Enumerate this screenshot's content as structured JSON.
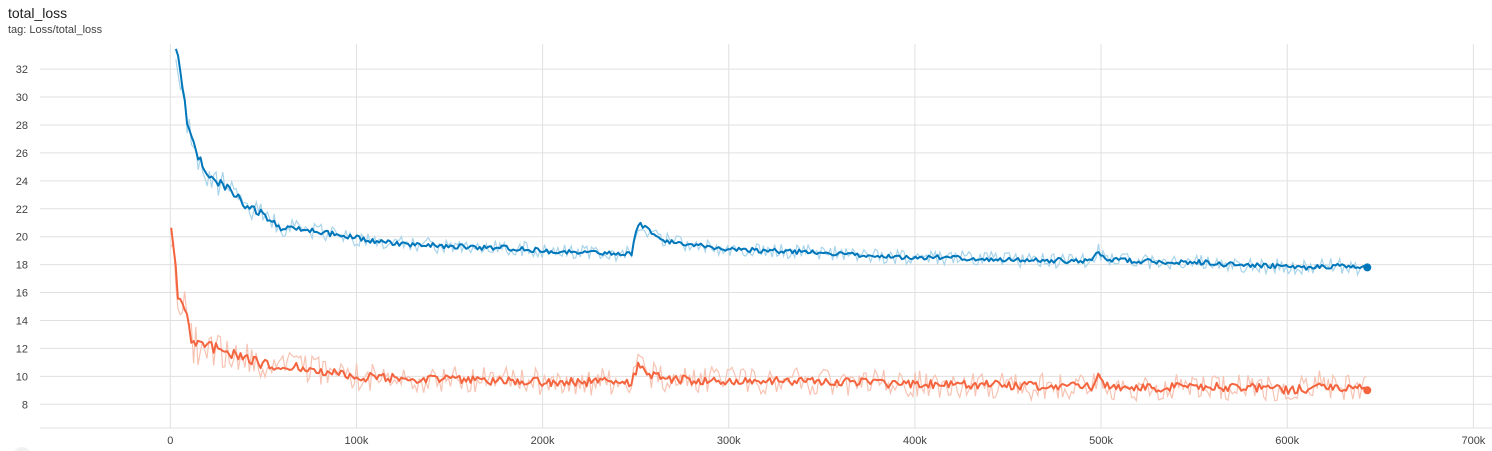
{
  "card": {
    "title": "total_loss",
    "tag": "tag: Loss/total_loss"
  },
  "chart_data": {
    "type": "line",
    "xlim": [
      -70000,
      710000
    ],
    "ylim": [
      6.3,
      33.8
    ],
    "xticks": [
      0,
      100000,
      200000,
      300000,
      400000,
      500000,
      600000,
      700000
    ],
    "xtick_labels": [
      "0",
      "100k",
      "200k",
      "300k",
      "400k",
      "500k",
      "600k",
      "700k"
    ],
    "yticks": [
      8,
      10,
      12,
      14,
      16,
      18,
      20,
      22,
      24,
      26,
      28,
      30,
      32
    ],
    "ytick_labels": [
      "8",
      "10",
      "12",
      "14",
      "16",
      "18",
      "20",
      "22",
      "24",
      "26",
      "28",
      "30",
      "32"
    ],
    "grid": true,
    "series": [
      {
        "color": "#0077bb",
        "raw_color": "#a9d4ea",
        "x": [
          3000,
          6000,
          9000,
          12000,
          15000,
          20000,
          25000,
          30000,
          35000,
          40000,
          45000,
          50000,
          55000,
          60000,
          70000,
          80000,
          90000,
          100000,
          110000,
          120000,
          130000,
          140000,
          150000,
          160000,
          170000,
          180000,
          190000,
          200000,
          210000,
          220000,
          230000,
          240000,
          248000,
          251000,
          255000,
          260000,
          270000,
          280000,
          290000,
          300000,
          320000,
          340000,
          360000,
          380000,
          400000,
          420000,
          440000,
          460000,
          480000,
          495000,
          498000,
          502000,
          510000,
          530000,
          550000,
          570000,
          590000,
          600000,
          610000,
          620000,
          630000,
          640000,
          643000
        ],
        "y": [
          33.8,
          31,
          28.2,
          26.7,
          25.5,
          24.6,
          23.8,
          23.6,
          23.0,
          22.3,
          21.9,
          21.6,
          21.1,
          20.6,
          20.6,
          20.4,
          20.1,
          19.9,
          19.7,
          19.5,
          19.4,
          19.4,
          19.3,
          19.3,
          19.2,
          19.2,
          19.1,
          19.0,
          18.9,
          18.9,
          18.9,
          18.8,
          18.8,
          21.0,
          20.7,
          20.0,
          19.6,
          19.4,
          19.3,
          19.1,
          19.0,
          18.9,
          18.8,
          18.6,
          18.5,
          18.5,
          18.4,
          18.3,
          18.3,
          18.2,
          19.1,
          18.4,
          18.3,
          18.2,
          18.2,
          18.0,
          17.9,
          17.9,
          17.8,
          17.9,
          17.9,
          17.8,
          17.8
        ]
      },
      {
        "color": "#f4653f",
        "raw_color": "#f7c3b3",
        "x": [
          500,
          2000,
          4000,
          6000,
          9000,
          12000,
          16000,
          20000,
          25000,
          30000,
          35000,
          40000,
          45000,
          50000,
          55000,
          60000,
          70000,
          80000,
          90000,
          100000,
          110000,
          120000,
          140000,
          160000,
          180000,
          200000,
          220000,
          240000,
          248000,
          251000,
          255000,
          260000,
          270000,
          280000,
          300000,
          320000,
          340000,
          360000,
          380000,
          400000,
          420000,
          440000,
          460000,
          480000,
          495000,
          498000,
          502000,
          510000,
          520000,
          530000,
          550000,
          570000,
          590000,
          600000,
          610000,
          615000,
          620000,
          630000,
          640000,
          643000
        ],
        "y": [
          20.1,
          18.5,
          16.0,
          15.2,
          14.1,
          12.3,
          12.2,
          12.1,
          12.0,
          11.8,
          11.6,
          11.3,
          11.1,
          10.9,
          10.8,
          10.7,
          10.6,
          10.4,
          10.2,
          10.0,
          9.9,
          9.9,
          9.8,
          9.7,
          9.7,
          9.6,
          9.6,
          9.6,
          9.6,
          10.8,
          10.5,
          10.0,
          9.8,
          9.7,
          9.7,
          9.7,
          9.6,
          9.6,
          9.5,
          9.5,
          9.4,
          9.4,
          9.3,
          9.3,
          9.2,
          10.1,
          9.4,
          9.2,
          9.1,
          9.2,
          9.3,
          9.2,
          9.2,
          9.0,
          9.1,
          9.6,
          9.3,
          9.1,
          9.1,
          9.0
        ]
      }
    ]
  }
}
